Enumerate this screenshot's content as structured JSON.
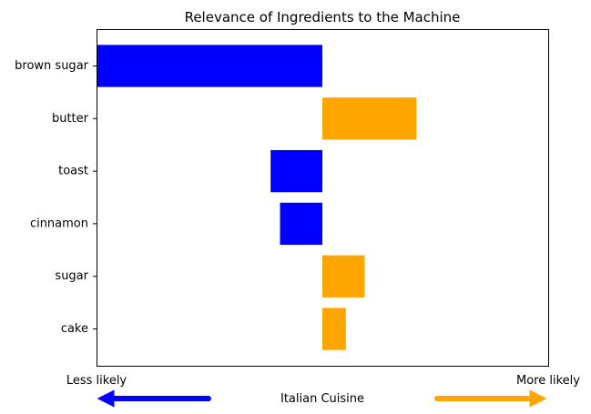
{
  "chart_data": {
    "type": "bar",
    "orientation": "horizontal",
    "title": "Relevance of Ingredients to the Machine",
    "categories": [
      "brown sugar",
      "butter",
      "toast",
      "cinnamon",
      "sugar",
      "cake"
    ],
    "values": [
      -0.48,
      0.2,
      -0.11,
      -0.09,
      0.09,
      0.05
    ],
    "xlim": [
      -0.48,
      0.48
    ],
    "grid": false,
    "colors": {
      "negative": "#0000ff",
      "positive": "#ffa500"
    },
    "x_axis": {
      "left_label": "Less likely",
      "right_label": "More likely",
      "center_label": "Italian Cuisine"
    }
  }
}
